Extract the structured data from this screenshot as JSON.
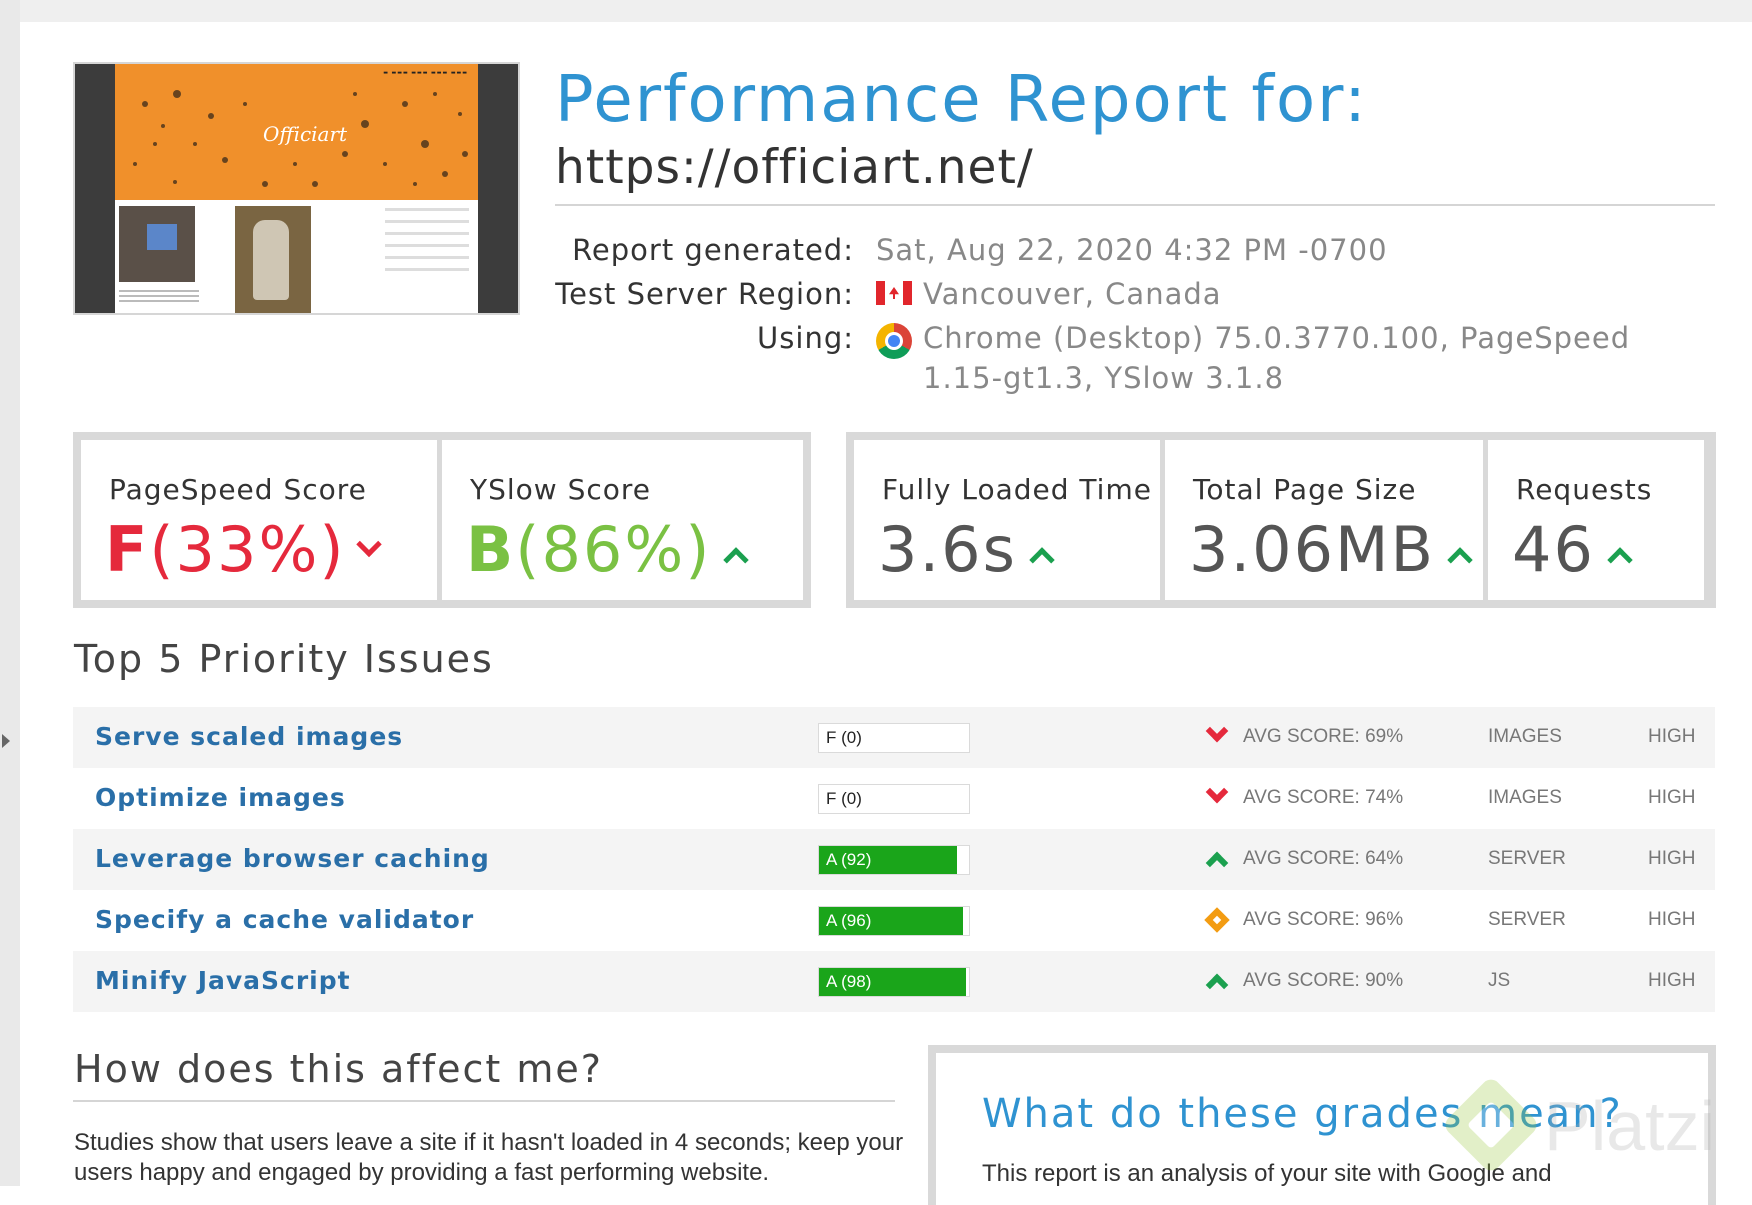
{
  "header": {
    "title": "Performance Report for:",
    "url": "https://officiart.net/"
  },
  "meta": {
    "report_generated_label": "Report generated:",
    "report_generated_value": "Sat, Aug 22, 2020 4:32 PM -0700",
    "region_label": "Test Server Region:",
    "region_value": "Vancouver, Canada",
    "region_flag": "canada-flag-icon",
    "using_label": "Using:",
    "using_value": "Chrome (Desktop) 75.0.3770.100, PageSpeed 1.15-gt1.3, YSlow 3.1.8",
    "using_icon": "chrome-icon"
  },
  "thumbnail": {
    "logo_text": "Officiart"
  },
  "scores": {
    "pagespeed": {
      "label": "PageSpeed Score",
      "grade": "F",
      "percent": "(33%)",
      "trend": "down",
      "color": "#e5293c"
    },
    "yslow": {
      "label": "YSlow Score",
      "grade": "B",
      "percent": "(86%)",
      "trend": "up",
      "color": "#7ac143"
    }
  },
  "metrics": {
    "fully_loaded": {
      "label": "Fully Loaded Time",
      "value": "3.6s",
      "trend": "up"
    },
    "page_size": {
      "label": "Total Page Size",
      "value": "3.06MB",
      "trend": "up"
    },
    "requests": {
      "label": "Requests",
      "value": "46",
      "trend": "up"
    }
  },
  "issues": {
    "title": "Top 5 Priority Issues",
    "rows": [
      {
        "name": "Serve scaled images",
        "grade": "F (0)",
        "score": 0,
        "icon": "chevron-down-icon",
        "avg": "AVG SCORE: 69%",
        "type": "IMAGES",
        "priority": "HIGH"
      },
      {
        "name": "Optimize images",
        "grade": "F (0)",
        "score": 0,
        "icon": "chevron-down-icon",
        "avg": "AVG SCORE: 74%",
        "type": "IMAGES",
        "priority": "HIGH"
      },
      {
        "name": "Leverage browser caching",
        "grade": "A (92)",
        "score": 92,
        "icon": "chevron-up-icon",
        "avg": "AVG SCORE: 64%",
        "type": "SERVER",
        "priority": "HIGH"
      },
      {
        "name": "Specify a cache validator",
        "grade": "A (96)",
        "score": 96,
        "icon": "diamond-icon",
        "avg": "AVG SCORE: 96%",
        "type": "SERVER",
        "priority": "HIGH"
      },
      {
        "name": "Minify JavaScript",
        "grade": "A (98)",
        "score": 98,
        "icon": "chevron-up-icon",
        "avg": "AVG SCORE: 90%",
        "type": "JS",
        "priority": "HIGH"
      }
    ]
  },
  "affect": {
    "title": "How does this affect me?",
    "text": "Studies show that users leave a site if it hasn't loaded in 4 seconds; keep your users happy and engaged by providing a fast performing website."
  },
  "grades": {
    "title": "What do these grades mean?",
    "text": "This report is an analysis of your site with Google and"
  },
  "watermark": {
    "text": "Platzi"
  },
  "colors": {
    "accent": "#2f93d1",
    "fail": "#e5293c",
    "pass_bar": "#1aa51a",
    "up": "#1ba04f",
    "warn": "#f39c12"
  }
}
